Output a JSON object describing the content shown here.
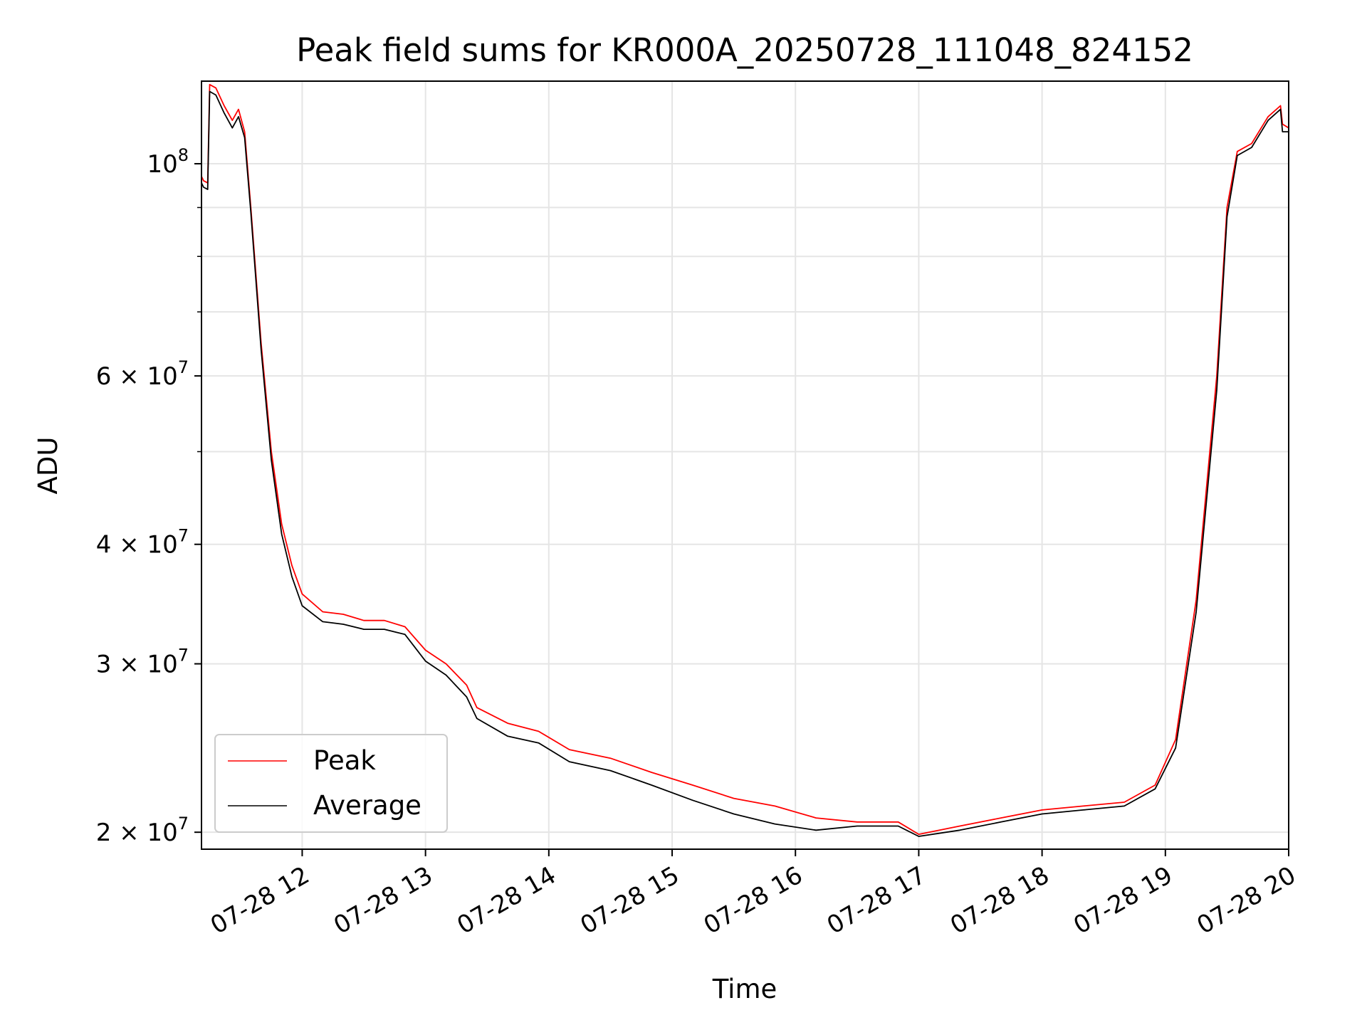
{
  "chart_data": {
    "type": "line",
    "title": "Peak field sums for KR000A_20250728_111048_824152",
    "xlabel": "Time",
    "ylabel": "ADU",
    "xscale": "time",
    "yscale": "log",
    "xlim": [
      "2025-07-28 11:11",
      "2025-07-28 20:00"
    ],
    "ylim": [
      19200000,
      122000000
    ],
    "xticks": [
      {
        "value": "2025-07-28 12:00",
        "label": "07-28 12"
      },
      {
        "value": "2025-07-28 13:00",
        "label": "07-28 13"
      },
      {
        "value": "2025-07-28 14:00",
        "label": "07-28 14"
      },
      {
        "value": "2025-07-28 15:00",
        "label": "07-28 15"
      },
      {
        "value": "2025-07-28 16:00",
        "label": "07-28 16"
      },
      {
        "value": "2025-07-28 17:00",
        "label": "07-28 17"
      },
      {
        "value": "2025-07-28 18:00",
        "label": "07-28 18"
      },
      {
        "value": "2025-07-28 19:00",
        "label": "07-28 19"
      },
      {
        "value": "2025-07-28 20:00",
        "label": "07-28 20"
      }
    ],
    "yticks_major": [
      {
        "value": 20000000,
        "mantissa": "2",
        "exp": "7"
      },
      {
        "value": 30000000,
        "mantissa": "3",
        "exp": "7"
      },
      {
        "value": 40000000,
        "mantissa": "4",
        "exp": "7"
      },
      {
        "value": 60000000,
        "mantissa": "6",
        "exp": "7"
      },
      {
        "value": 100000000,
        "mantissa": "",
        "exp": "8"
      }
    ],
    "yticks_minor": [
      50000000,
      70000000,
      80000000,
      90000000
    ],
    "grid": true,
    "legend": "lower-left",
    "series": [
      {
        "name": "Peak",
        "color": "#ff0000",
        "x": [
          "2025-07-28 11:11",
          "2025-07-28 11:12",
          "2025-07-28 11:14",
          "2025-07-28 11:15",
          "2025-07-28 11:18",
          "2025-07-28 11:22",
          "2025-07-28 11:26",
          "2025-07-28 11:29",
          "2025-07-28 11:32",
          "2025-07-28 11:35",
          "2025-07-28 11:40",
          "2025-07-28 11:45",
          "2025-07-28 11:50",
          "2025-07-28 11:55",
          "2025-07-28 12:00",
          "2025-07-28 12:10",
          "2025-07-28 12:20",
          "2025-07-28 12:30",
          "2025-07-28 12:40",
          "2025-07-28 12:50",
          "2025-07-28 13:00",
          "2025-07-28 13:10",
          "2025-07-28 13:20",
          "2025-07-28 13:25",
          "2025-07-28 13:40",
          "2025-07-28 13:55",
          "2025-07-28 14:10",
          "2025-07-28 14:30",
          "2025-07-28 14:50",
          "2025-07-28 15:10",
          "2025-07-28 15:30",
          "2025-07-28 15:50",
          "2025-07-28 16:10",
          "2025-07-28 16:30",
          "2025-07-28 16:50",
          "2025-07-28 17:00",
          "2025-07-28 17:20",
          "2025-07-28 17:40",
          "2025-07-28 18:00",
          "2025-07-28 18:20",
          "2025-07-28 18:40",
          "2025-07-28 18:55",
          "2025-07-28 19:05",
          "2025-07-28 19:15",
          "2025-07-28 19:25",
          "2025-07-28 19:30",
          "2025-07-28 19:35",
          "2025-07-28 19:42",
          "2025-07-28 19:50",
          "2025-07-28 19:56",
          "2025-07-28 19:57",
          "2025-07-28 20:00"
        ],
        "y": [
          97000000,
          96000000,
          95500000,
          121000000,
          120000000,
          115000000,
          111000000,
          114000000,
          108000000,
          90000000,
          65000000,
          50000000,
          42000000,
          38000000,
          35500000,
          34000000,
          33800000,
          33300000,
          33300000,
          32800000,
          31000000,
          30000000,
          28500000,
          27000000,
          26000000,
          25500000,
          24400000,
          23900000,
          23100000,
          22400000,
          21700000,
          21300000,
          20700000,
          20500000,
          20500000,
          19900000,
          20300000,
          20700000,
          21100000,
          21300000,
          21500000,
          22400000,
          25000000,
          35000000,
          60000000,
          90000000,
          103000000,
          105000000,
          112000000,
          115000000,
          110000000,
          109000000
        ]
      },
      {
        "name": "Average",
        "color": "#000000",
        "x": [
          "2025-07-28 11:11",
          "2025-07-28 11:12",
          "2025-07-28 11:14",
          "2025-07-28 11:15",
          "2025-07-28 11:18",
          "2025-07-28 11:22",
          "2025-07-28 11:26",
          "2025-07-28 11:29",
          "2025-07-28 11:32",
          "2025-07-28 11:35",
          "2025-07-28 11:40",
          "2025-07-28 11:45",
          "2025-07-28 11:50",
          "2025-07-28 11:55",
          "2025-07-28 12:00",
          "2025-07-28 12:10",
          "2025-07-28 12:20",
          "2025-07-28 12:30",
          "2025-07-28 12:40",
          "2025-07-28 12:50",
          "2025-07-28 13:00",
          "2025-07-28 13:10",
          "2025-07-28 13:20",
          "2025-07-28 13:25",
          "2025-07-28 13:40",
          "2025-07-28 13:55",
          "2025-07-28 14:10",
          "2025-07-28 14:30",
          "2025-07-28 14:50",
          "2025-07-28 15:10",
          "2025-07-28 15:30",
          "2025-07-28 15:50",
          "2025-07-28 16:10",
          "2025-07-28 16:30",
          "2025-07-28 16:50",
          "2025-07-28 17:00",
          "2025-07-28 17:20",
          "2025-07-28 17:40",
          "2025-07-28 18:00",
          "2025-07-28 18:20",
          "2025-07-28 18:40",
          "2025-07-28 18:55",
          "2025-07-28 19:05",
          "2025-07-28 19:15",
          "2025-07-28 19:25",
          "2025-07-28 19:30",
          "2025-07-28 19:35",
          "2025-07-28 19:42",
          "2025-07-28 19:50",
          "2025-07-28 19:56",
          "2025-07-28 19:57",
          "2025-07-28 20:00"
        ],
        "y": [
          95500000,
          94500000,
          94000000,
          119000000,
          118000000,
          113000000,
          109000000,
          112000000,
          106500000,
          89000000,
          64000000,
          49000000,
          41000000,
          37000000,
          34500000,
          33200000,
          33000000,
          32600000,
          32600000,
          32200000,
          30200000,
          29200000,
          27700000,
          26300000,
          25200000,
          24800000,
          23700000,
          23200000,
          22400000,
          21600000,
          20900000,
          20400000,
          20100000,
          20300000,
          20300000,
          19800000,
          20100000,
          20500000,
          20900000,
          21100000,
          21300000,
          22200000,
          24500000,
          34000000,
          58000000,
          88000000,
          102000000,
          104000000,
          111000000,
          114000000,
          108000000,
          108000000
        ]
      }
    ]
  }
}
